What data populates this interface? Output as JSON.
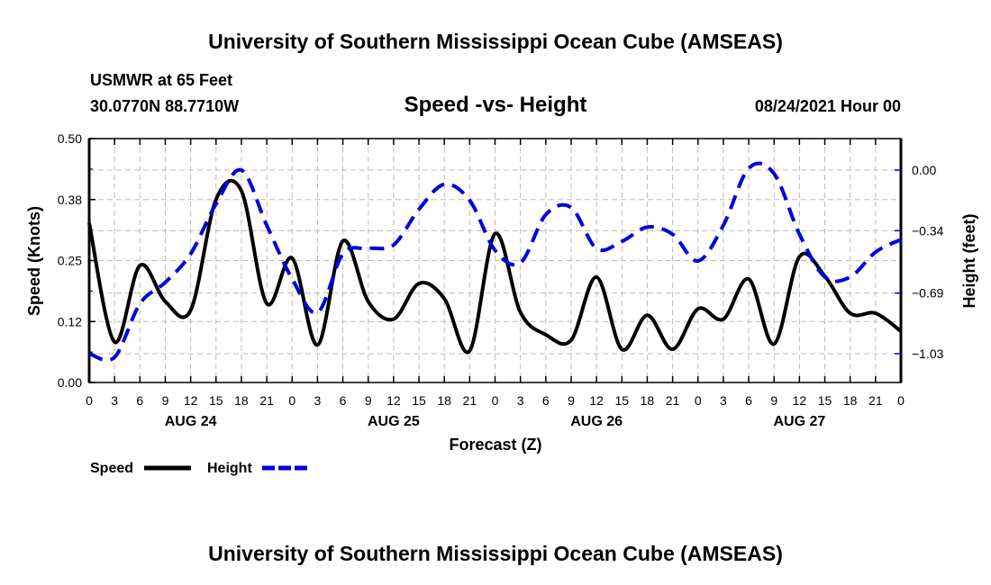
{
  "chart_data": {
    "type": "line",
    "title": "University of Southern Mississippi Ocean Cube (AMSEAS)",
    "footer_title": "University of Southern Mississippi Ocean Cube (AMSEAS)",
    "station": "USMWR at 65 Feet",
    "location": "30.0770N  88.7710W",
    "subtitle": "Speed -vs- Height",
    "date": "08/24/2021 Hour 00",
    "xlabel": "Forecast (Z)",
    "ylabel": "Speed (Knots)",
    "y2label": "Height (feet)",
    "xlim": [
      0,
      96
    ],
    "ylim": [
      0,
      0.5
    ],
    "y2lim": [
      -1.21,
      0.17
    ],
    "yticks": [
      {
        "v": 0,
        "label": "0.00"
      },
      {
        "v": 0.125,
        "label": "0.12"
      },
      {
        "v": 0.25,
        "label": "0.25"
      },
      {
        "v": 0.375,
        "label": "0.38"
      },
      {
        "v": 0.5,
        "label": "0.50"
      }
    ],
    "y2ticks": [
      {
        "v": 0,
        "label": "0.00"
      },
      {
        "v": -0.34,
        "label": "−0.34"
      },
      {
        "v": -0.69,
        "label": "−0.69"
      },
      {
        "v": -1.03,
        "label": "−1.03"
      }
    ],
    "xtick_labels": [
      "0",
      "3",
      "6",
      "9",
      "12",
      "15",
      "18",
      "21",
      "0",
      "3",
      "6",
      "9",
      "12",
      "15",
      "18",
      "21",
      "0",
      "3",
      "6",
      "9",
      "12",
      "15",
      "18",
      "21",
      "0",
      "3",
      "6",
      "9",
      "12",
      "15",
      "18",
      "21",
      "0"
    ],
    "day_labels": [
      {
        "hour": 12,
        "label": "AUG 24"
      },
      {
        "hour": 36,
        "label": "AUG 25"
      },
      {
        "hour": 60,
        "label": "AUG 26"
      },
      {
        "hour": 84,
        "label": "AUG 27"
      }
    ],
    "grid": true,
    "x": [
      0,
      3,
      6,
      9,
      12,
      15,
      18,
      21,
      24,
      27,
      30,
      33,
      36,
      39,
      42,
      45,
      48,
      51,
      54,
      57,
      60,
      63,
      66,
      69,
      72,
      75,
      78,
      81,
      84,
      87,
      90,
      93,
      96
    ],
    "series": [
      {
        "name": "Speed",
        "axis": "left",
        "color": "#000000",
        "style": "solid",
        "values": [
          0.327,
          0.083,
          0.24,
          0.166,
          0.148,
          0.375,
          0.393,
          0.162,
          0.255,
          0.077,
          0.29,
          0.166,
          0.13,
          0.203,
          0.172,
          0.065,
          0.305,
          0.144,
          0.098,
          0.087,
          0.216,
          0.068,
          0.138,
          0.068,
          0.151,
          0.13,
          0.212,
          0.079,
          0.258,
          0.218,
          0.142,
          0.142,
          0.105
        ]
      },
      {
        "name": "Height",
        "axis": "right",
        "color": "#0000dd",
        "style": "dashed",
        "values": [
          -1.03,
          -1.05,
          -0.75,
          -0.63,
          -0.47,
          -0.19,
          0.0,
          -0.31,
          -0.61,
          -0.8,
          -0.47,
          -0.44,
          -0.42,
          -0.22,
          -0.08,
          -0.17,
          -0.45,
          -0.52,
          -0.25,
          -0.21,
          -0.44,
          -0.4,
          -0.32,
          -0.36,
          -0.51,
          -0.31,
          0.01,
          -0.02,
          -0.36,
          -0.6,
          -0.6,
          -0.46,
          -0.39
        ]
      }
    ],
    "legend": [
      {
        "label": "Speed"
      },
      {
        "label": "Height"
      }
    ],
    "legend_placement": "bottom-left"
  }
}
